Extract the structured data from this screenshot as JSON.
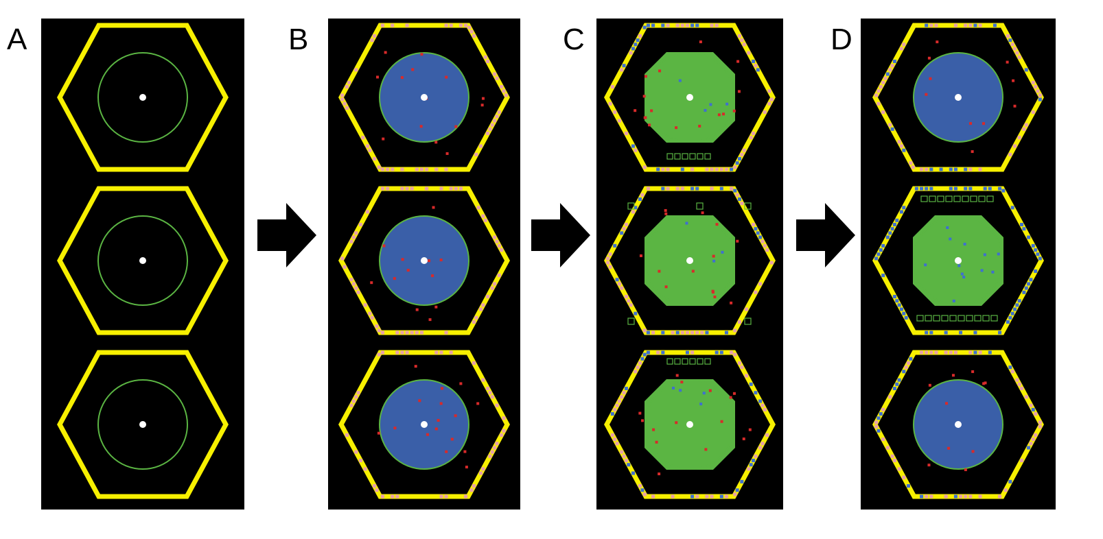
{
  "figure": {
    "colors": {
      "background": "#000000",
      "hexagon": "#f7f000",
      "hexagon_dots": "#e8a0a8",
      "circle": "#5bb543",
      "blue_fill": "#3a5fa8",
      "green_fill": "#5bb543",
      "nucleus": "#ffffff",
      "red_dots": "#d82a2a",
      "blue_dots": "#3f6fd0",
      "arrow": "#000000"
    },
    "panels": [
      {
        "label": "A",
        "cells": [
          {
            "fill": "none",
            "ring_dots": "none",
            "red": 0,
            "blue": 0,
            "boxes": "none"
          },
          {
            "fill": "none",
            "ring_dots": "none",
            "red": 0,
            "blue": 0,
            "boxes": "none"
          },
          {
            "fill": "none",
            "ring_dots": "none",
            "red": 0,
            "blue": 0,
            "boxes": "none"
          }
        ]
      },
      {
        "label": "B",
        "cells": [
          {
            "fill": "blue",
            "ring_dots": "pink",
            "red": 14,
            "blue": 0,
            "boxes": "none"
          },
          {
            "fill": "blue",
            "ring_dots": "pink",
            "red": 12,
            "blue": 0,
            "boxes": "none"
          },
          {
            "fill": "blue",
            "ring_dots": "pink",
            "red": 16,
            "blue": 0,
            "boxes": "none"
          }
        ]
      },
      {
        "label": "C",
        "cells": [
          {
            "fill": "green",
            "ring_dots": "pink-blue",
            "red": 16,
            "blue": 4,
            "boxes": "bottom"
          },
          {
            "fill": "green",
            "ring_dots": "pink-blue",
            "red": 14,
            "blue": 3,
            "boxes": "corners"
          },
          {
            "fill": "green",
            "ring_dots": "pink-blue",
            "red": 16,
            "blue": 4,
            "boxes": "top"
          }
        ]
      },
      {
        "label": "D",
        "cells": [
          {
            "fill": "blue",
            "ring_dots": "pink-blue",
            "red": 10,
            "blue": 0,
            "boxes": "none"
          },
          {
            "fill": "green",
            "ring_dots": "blue",
            "red": 0,
            "blue": 12,
            "boxes": "rows"
          },
          {
            "fill": "blue",
            "ring_dots": "pink-blue",
            "red": 10,
            "blue": 0,
            "boxes": "none"
          }
        ]
      }
    ]
  }
}
